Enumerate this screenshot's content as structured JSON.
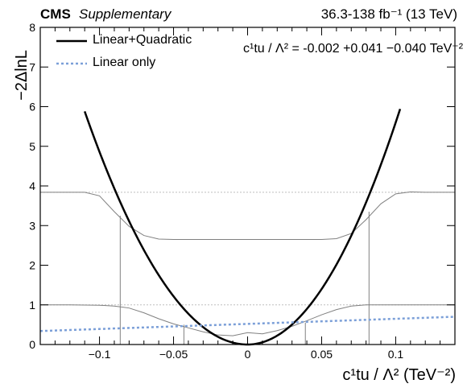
{
  "header": {
    "experiment": "CMS",
    "status": "Supplementary",
    "lumi": "36.3-138 fb⁻¹ (13 TeV)"
  },
  "result": {
    "text": "c¹tu / Λ² = -0.002 +0.041 −0.040 TeV⁻²"
  },
  "colors": {
    "main": "#000000",
    "linear": "#7b9fd8",
    "aux": "#808080",
    "ref": "#bfbfbf"
  },
  "chart_data": {
    "type": "line",
    "xlabel": "c¹tu / Λ² (TeV⁻²)",
    "ylabel": "−2ΔlnL",
    "xlim": [
      -0.14,
      0.14
    ],
    "ylim": [
      0,
      8
    ],
    "x_ticks": [
      "−0.1",
      "−0.05",
      "0",
      "0.05",
      "0.1"
    ],
    "y_ticks": [
      "0",
      "1",
      "2",
      "3",
      "4",
      "5",
      "6",
      "7",
      "8"
    ],
    "legend": [
      "Linear+Quadratic",
      "Linear only"
    ],
    "legend_position": "top-left",
    "reference_lines": [
      1,
      3.84
    ],
    "series": [
      {
        "name": "Linear+Quadratic",
        "x": [
          -0.11,
          -0.1,
          -0.09,
          -0.08,
          -0.07,
          -0.06,
          -0.05,
          -0.04,
          -0.03,
          -0.02,
          -0.01,
          0,
          0.01,
          0.02,
          0.03,
          0.04,
          0.05,
          0.06,
          0.07,
          0.08,
          0.09,
          0.1,
          0.103
        ],
        "y": [
          5.9,
          4.85,
          3.88,
          3.02,
          2.25,
          1.6,
          1.05,
          0.62,
          0.3,
          0.1,
          0.01,
          0.0,
          0.06,
          0.2,
          0.45,
          0.8,
          1.3,
          1.92,
          2.7,
          3.62,
          4.7,
          5.9,
          5.9
        ]
      },
      {
        "name": "Linear only",
        "x": [
          -0.14,
          0.14
        ],
        "y": [
          0.34,
          0.7
        ]
      }
    ],
    "auxiliary_curves": [
      {
        "x": [
          -0.14,
          -0.12,
          -0.11,
          -0.1,
          -0.09,
          -0.08,
          -0.07,
          -0.06,
          -0.05,
          -0.03,
          0,
          0.03,
          0.05,
          0.06,
          0.07,
          0.08,
          0.09,
          0.1,
          0.11,
          0.12,
          0.14
        ],
        "y": [
          3.84,
          3.84,
          3.84,
          3.75,
          3.35,
          2.98,
          2.75,
          2.66,
          2.65,
          2.65,
          2.65,
          2.65,
          2.65,
          2.67,
          2.8,
          3.15,
          3.55,
          3.8,
          3.85,
          3.84,
          3.84
        ]
      },
      {
        "x": [
          -0.14,
          -0.12,
          -0.1,
          -0.09,
          -0.08,
          -0.07,
          -0.06,
          -0.05,
          -0.04,
          -0.03,
          -0.02,
          -0.01,
          0,
          0.01,
          0.02,
          0.03,
          0.04,
          0.05,
          0.06,
          0.07,
          0.08,
          0.1,
          0.14
        ],
        "y": [
          1.0,
          1.0,
          0.99,
          0.97,
          0.92,
          0.8,
          0.65,
          0.52,
          0.42,
          0.32,
          0.24,
          0.22,
          0.3,
          0.27,
          0.35,
          0.46,
          0.6,
          0.75,
          0.88,
          0.97,
          1.0,
          1.0,
          1.0
        ]
      }
    ],
    "vertical_markers": [
      {
        "x": -0.086,
        "y": 3.25
      },
      {
        "x": -0.043,
        "y": 0.5
      },
      {
        "x": 0.039,
        "y": 0.55
      },
      {
        "x": 0.082,
        "y": 3.35
      }
    ]
  }
}
